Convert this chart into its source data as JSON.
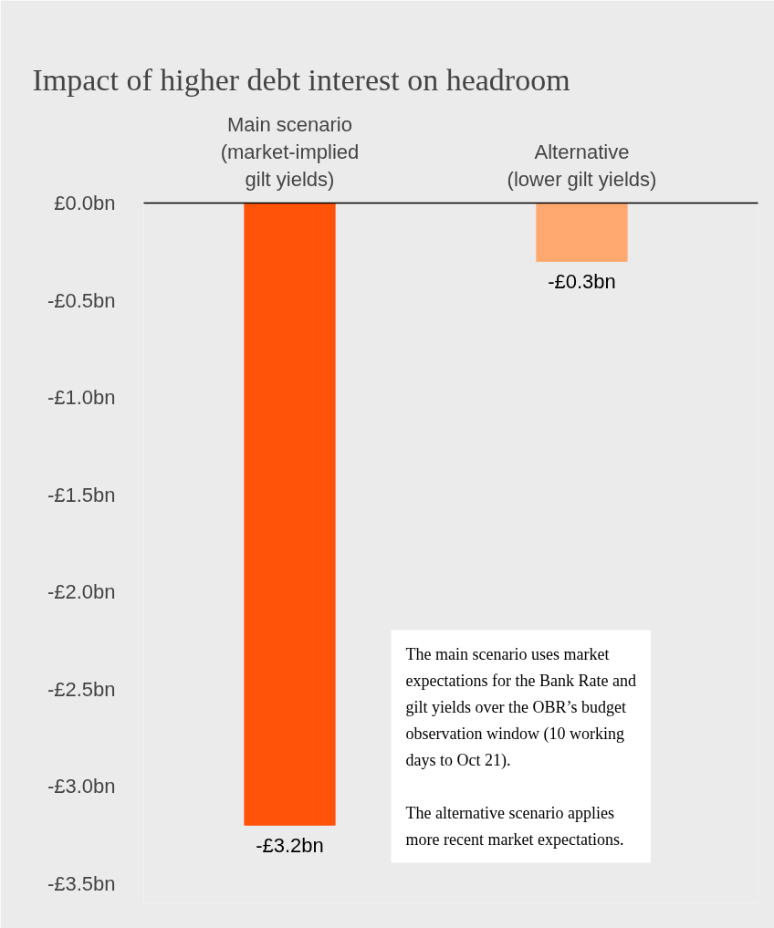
{
  "chart_data": {
    "type": "bar",
    "title": "Impact of higher debt interest on headroom",
    "categories": [
      "Main scenario\n(market-implied\ngilt yields)",
      "Alternative\n(lower gilt yields)"
    ],
    "values": [
      -3.2,
      -0.3
    ],
    "colors": [
      "#ff5309",
      "#ffa870"
    ],
    "value_labels": [
      "-£3.2bn",
      "-£0.3bn"
    ],
    "ylim": [
      -3.6,
      0
    ],
    "yticks": [
      {
        "value": 0,
        "label": "£0.0bn"
      },
      {
        "value": -0.5,
        "label": "-£0.5bn"
      },
      {
        "value": -1.0,
        "label": "-£1.0bn"
      },
      {
        "value": -1.5,
        "label": "-£1.5bn"
      },
      {
        "value": -2.0,
        "label": "-£2.0bn"
      },
      {
        "value": -2.5,
        "label": "-£2.5bn"
      },
      {
        "value": -3.0,
        "label": "-£3.0bn"
      },
      {
        "value": -3.5,
        "label": "-£3.5bn"
      }
    ],
    "grid": false,
    "annotations": [
      "The main scenario uses market\nexpectations for the Bank Rate and\ngilt yields over the OBR’s budget\nobservation window (10 working\ndays to Oct 21).",
      "The alternative scenario applies\nmore recent market expectations."
    ]
  }
}
